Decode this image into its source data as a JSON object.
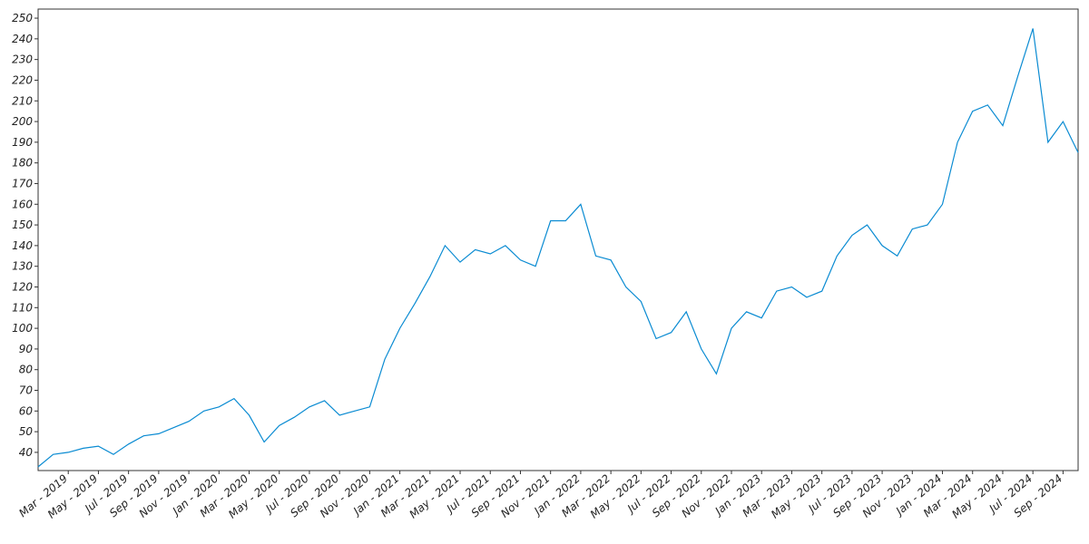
{
  "chart_data": {
    "type": "line",
    "x": [
      "2019-01",
      "2019-02",
      "2019-03",
      "2019-04",
      "2019-05",
      "2019-06",
      "2019-07",
      "2019-08",
      "2019-09",
      "2019-10",
      "2019-11",
      "2019-12",
      "2020-01",
      "2020-02",
      "2020-03",
      "2020-04",
      "2020-05",
      "2020-06",
      "2020-07",
      "2020-08",
      "2020-09",
      "2020-10",
      "2020-11",
      "2020-12",
      "2021-01",
      "2021-02",
      "2021-03",
      "2021-04",
      "2021-05",
      "2021-06",
      "2021-07",
      "2021-08",
      "2021-09",
      "2021-10",
      "2021-11",
      "2021-12",
      "2022-01",
      "2022-02",
      "2022-03",
      "2022-04",
      "2022-05",
      "2022-06",
      "2022-07",
      "2022-08",
      "2022-09",
      "2022-10",
      "2022-11",
      "2022-12",
      "2023-01",
      "2023-02",
      "2023-03",
      "2023-04",
      "2023-05",
      "2023-06",
      "2023-07",
      "2023-08",
      "2023-09",
      "2023-10",
      "2023-11",
      "2023-12",
      "2024-01",
      "2024-02",
      "2024-03",
      "2024-04",
      "2024-05",
      "2024-06",
      "2024-07",
      "2024-08",
      "2024-09",
      "2024-10"
    ],
    "series": [
      {
        "color": "#0a8bd2",
        "values": [
          33,
          39,
          40,
          42,
          43,
          39,
          44,
          48,
          49,
          52,
          55,
          60,
          62,
          66,
          58,
          45,
          53,
          57,
          62,
          65,
          58,
          60,
          62,
          85,
          100,
          112,
          125,
          140,
          132,
          138,
          136,
          140,
          133,
          130,
          152,
          152,
          160,
          135,
          133,
          120,
          113,
          95,
          98,
          108,
          90,
          78,
          100,
          108,
          105,
          118,
          120,
          115,
          118,
          135,
          145,
          150,
          140,
          135,
          148,
          150,
          160,
          190,
          205,
          208,
          198,
          222,
          245,
          190,
          200,
          185
        ]
      }
    ],
    "xlim": [
      "2019-01",
      "2024-10"
    ],
    "xticks": [
      {
        "value": "2019-03",
        "label": "Mar - 2019"
      },
      {
        "value": "2019-05",
        "label": "May - 2019"
      },
      {
        "value": "2019-07",
        "label": "Jul - 2019"
      },
      {
        "value": "2019-09",
        "label": "Sep - 2019"
      },
      {
        "value": "2019-11",
        "label": "Nov - 2019"
      },
      {
        "value": "2020-01",
        "label": "Jan - 2020"
      },
      {
        "value": "2020-03",
        "label": "Mar - 2020"
      },
      {
        "value": "2020-05",
        "label": "May - 2020"
      },
      {
        "value": "2020-07",
        "label": "Jul - 2020"
      },
      {
        "value": "2020-09",
        "label": "Sep - 2020"
      },
      {
        "value": "2020-11",
        "label": "Nov - 2020"
      },
      {
        "value": "2021-01",
        "label": "Jan - 2021"
      },
      {
        "value": "2021-03",
        "label": "Mar - 2021"
      },
      {
        "value": "2021-05",
        "label": "May - 2021"
      },
      {
        "value": "2021-07",
        "label": "Jul - 2021"
      },
      {
        "value": "2021-09",
        "label": "Sep - 2021"
      },
      {
        "value": "2021-11",
        "label": "Nov - 2021"
      },
      {
        "value": "2022-01",
        "label": "Jan - 2022"
      },
      {
        "value": "2022-03",
        "label": "Mar - 2022"
      },
      {
        "value": "2022-05",
        "label": "May - 2022"
      },
      {
        "value": "2022-07",
        "label": "Jul - 2022"
      },
      {
        "value": "2022-09",
        "label": "Sep - 2022"
      },
      {
        "value": "2022-11",
        "label": "Nov - 2022"
      },
      {
        "value": "2023-01",
        "label": "Jan - 2023"
      },
      {
        "value": "2023-03",
        "label": "Mar - 2023"
      },
      {
        "value": "2023-05",
        "label": "May - 2023"
      },
      {
        "value": "2023-07",
        "label": "Jul - 2023"
      },
      {
        "value": "2023-09",
        "label": "Sep - 2023"
      },
      {
        "value": "2023-11",
        "label": "Nov - 2023"
      },
      {
        "value": "2024-01",
        "label": "Jan - 2024"
      },
      {
        "value": "2024-03",
        "label": "Mar - 2024"
      },
      {
        "value": "2024-05",
        "label": "May - 2024"
      },
      {
        "value": "2024-07",
        "label": "Jul - 2024"
      },
      {
        "value": "2024-09",
        "label": "Sep - 2024"
      }
    ],
    "ylim": [
      31.2,
      254.4
    ],
    "yticks": [
      40,
      50,
      60,
      70,
      80,
      90,
      100,
      110,
      120,
      130,
      140,
      150,
      160,
      170,
      180,
      190,
      200,
      210,
      220,
      230,
      240,
      250
    ]
  }
}
